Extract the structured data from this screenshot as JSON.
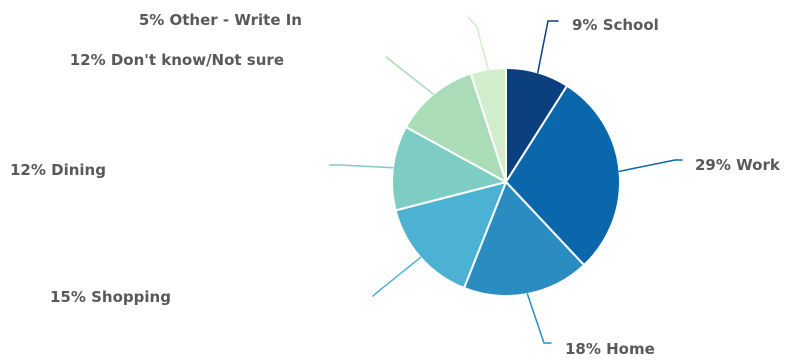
{
  "chart_data": {
    "type": "pie",
    "title": "",
    "start_angle": "12 o'clock, clockwise",
    "slices": [
      {
        "label": "9% School",
        "category": "School",
        "value": 9,
        "color": "#0B3F7E"
      },
      {
        "label": "29% Work",
        "category": "Work",
        "value": 29,
        "color": "#0A67AC"
      },
      {
        "label": "18% Home",
        "category": "Home",
        "value": 18,
        "color": "#2A8CC0"
      },
      {
        "label": "15% Shopping",
        "category": "Shopping",
        "value": 15,
        "color": "#4BB2D3"
      },
      {
        "label": "12% Dining",
        "category": "Dining",
        "value": 12,
        "color": "#7DCDC4"
      },
      {
        "label": "12% Don't know/Not sure",
        "category": "Don't know/Not sure",
        "value": 12,
        "color": "#A9DCB7"
      },
      {
        "label": "5% Other - Write In",
        "category": "Other - Write In",
        "value": 5,
        "color": "#D2EDCB"
      }
    ]
  }
}
